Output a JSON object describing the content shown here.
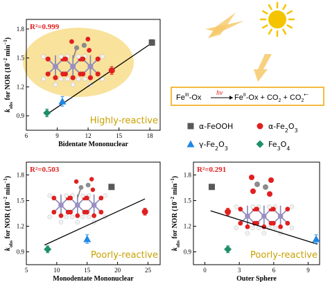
{
  "colors": {
    "alpha_feooh": "#595959",
    "alpha_fe2o3": "#e02020",
    "gamma_fe2o3": "#1e88e5",
    "fe3o4": "#1e8f6a",
    "fit": "#000000",
    "r2": "#e02020",
    "reactivity": "#c8a000",
    "sun": "#f5c400",
    "arrow": "#f6c96a",
    "equation_box": "#f4a300"
  },
  "icons": [
    "sun-icon",
    "light-ray-arrow",
    "molecule-illustration"
  ],
  "legend": {
    "items": [
      {
        "label": "α-FeOOH",
        "color": "#595959",
        "marker": "square"
      },
      {
        "label": "α-Fe2O3",
        "color": "#e02020",
        "marker": "circle"
      },
      {
        "label": "γ-Fe2O3",
        "color": "#1e88e5",
        "marker": "triangle"
      },
      {
        "label": "Fe3O4",
        "color": "#1e8f6a",
        "marker": "diamond"
      }
    ]
  },
  "equation": {
    "lhs_sup": "III",
    "lhs": "-Ox",
    "hv": "hv",
    "rhs_sup": "II",
    "rhs_tail": "-Ox + CO",
    "rhs_co2_minus": "2",
    "minus_sup": "•−"
  },
  "chart_data": [
    {
      "type": "scatter",
      "id": "bidentate",
      "xlabel": "Bidentate Mononuclear",
      "ylabel": "kobs for NOR (10−2 min−1)",
      "xlim": [
        6,
        19
      ],
      "ylim": [
        0.75,
        1.9
      ],
      "xticks": [
        6,
        9,
        12,
        15,
        18
      ],
      "yticks": [
        0.9,
        1.2,
        1.5,
        1.8
      ],
      "annotation_r2": "R²=0.999",
      "reactivity_label": "Highly-reactive",
      "fit_line": {
        "x": [
          8.2,
          18.4
        ],
        "y": [
          0.93,
          1.67
        ]
      },
      "points": [
        {
          "series": "α-FeOOH",
          "x": 18.2,
          "y": 1.66,
          "err": 0.03
        },
        {
          "series": "α-Fe2O3",
          "x": 14.3,
          "y": 1.37,
          "err": 0.04
        },
        {
          "series": "γ-Fe2O3",
          "x": 9.5,
          "y": 1.05,
          "err": 0.05
        },
        {
          "series": "Fe3O4",
          "x": 8.0,
          "y": 0.93,
          "err": 0.04
        }
      ]
    },
    {
      "type": "scatter",
      "id": "monodentate",
      "xlabel": "Monodentate Mononuclear",
      "ylabel": "kobs for NOR (10−2 min−1)",
      "xlim": [
        5,
        27
      ],
      "ylim": [
        0.75,
        1.95
      ],
      "xticks": [
        5,
        10,
        15,
        20,
        25
      ],
      "yticks": [
        0.9,
        1.2,
        1.5,
        1.8
      ],
      "annotation_r2": "R²=0.503",
      "reactivity_label": "Poorly-reactive",
      "fit_line": {
        "x": [
          8.0,
          24.5
        ],
        "y": [
          0.98,
          1.52
        ]
      },
      "points": [
        {
          "series": "α-FeOOH",
          "x": 19.0,
          "y": 1.66,
          "err": 0.03
        },
        {
          "series": "α-Fe2O3",
          "x": 24.5,
          "y": 1.37,
          "err": 0.04
        },
        {
          "series": "γ-Fe2O3",
          "x": 15.0,
          "y": 1.05,
          "err": 0.05
        },
        {
          "series": "Fe3O4",
          "x": 8.5,
          "y": 0.93,
          "err": 0.04
        }
      ]
    },
    {
      "type": "scatter",
      "id": "outer",
      "xlabel": "Outer Sphere",
      "ylabel": "kobs for NOR (10−2 min−1)",
      "xlim": [
        -1,
        10
      ],
      "ylim": [
        0.75,
        1.95
      ],
      "xticks": [
        0,
        3,
        6,
        9
      ],
      "yticks": [
        0.9,
        1.2,
        1.5,
        1.8
      ],
      "annotation_r2": "R²=0.291",
      "reactivity_label": "Poorly-reactive",
      "fit_line": {
        "x": [
          0.5,
          9.8
        ],
        "y": [
          1.38,
          0.99
        ]
      },
      "points": [
        {
          "series": "α-FeOOH",
          "x": 0.6,
          "y": 1.66,
          "err": 0.03
        },
        {
          "series": "α-Fe2O3",
          "x": 2.0,
          "y": 1.37,
          "err": 0.04
        },
        {
          "series": "γ-Fe2O3",
          "x": 9.7,
          "y": 1.05,
          "err": 0.05
        },
        {
          "series": "Fe3O4",
          "x": 2.0,
          "y": 0.93,
          "err": 0.04
        }
      ]
    }
  ]
}
